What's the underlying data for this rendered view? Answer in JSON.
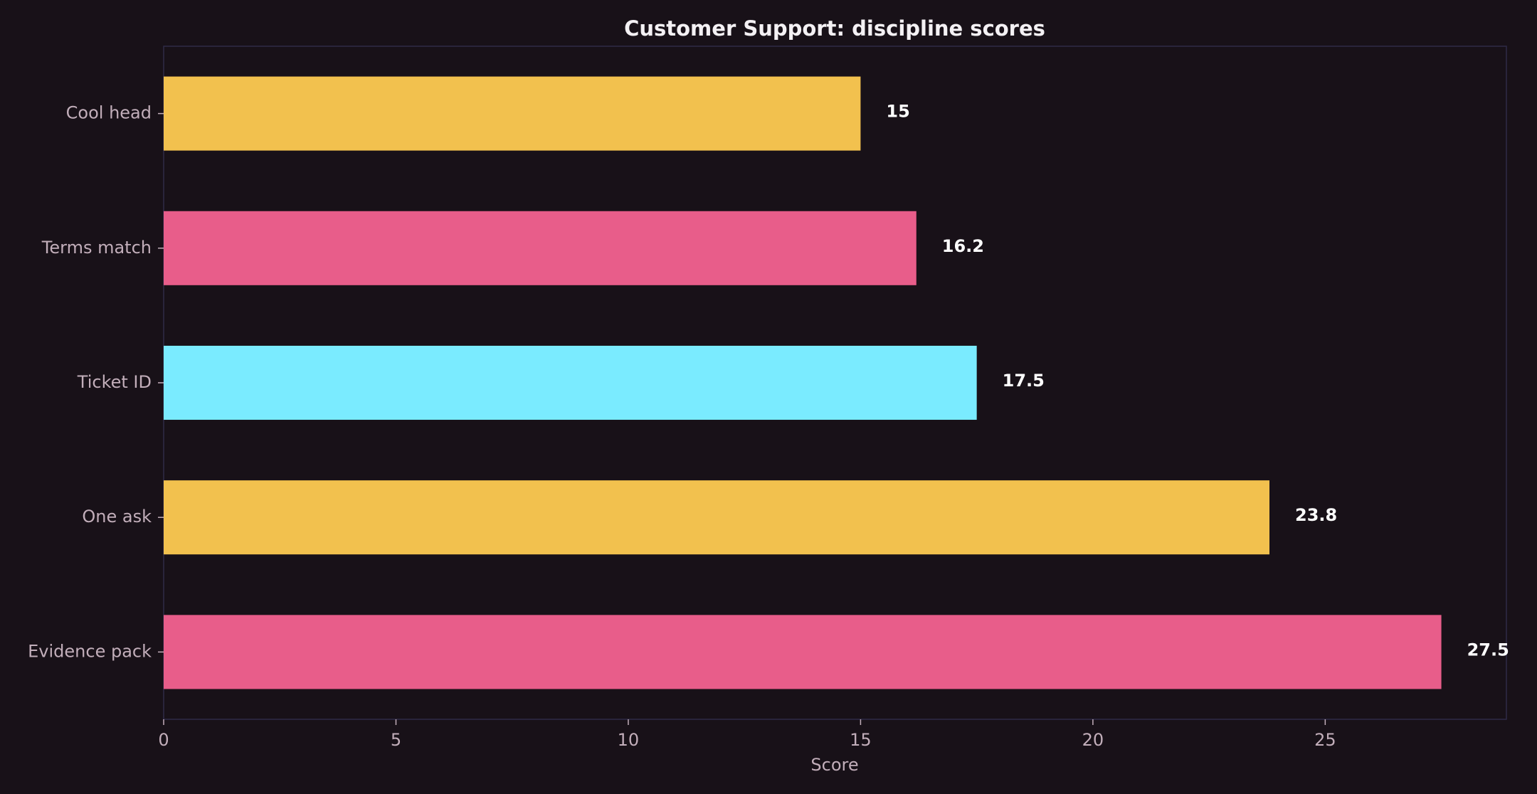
{
  "chart_data": {
    "type": "bar",
    "orientation": "horizontal",
    "title": "Customer Support: discipline scores",
    "xlabel": "Score",
    "ylabel": "",
    "categories": [
      "Cool head",
      "Terms match",
      "Ticket ID",
      "One ask",
      "Evidence pack"
    ],
    "values": [
      15,
      16.2,
      17.5,
      23.8,
      27.5
    ],
    "value_labels": [
      "15",
      "16.2",
      "17.5",
      "23.8",
      "27.5"
    ],
    "bar_colors": [
      "#f2c14e",
      "#e85d8a",
      "#7aebff",
      "#f2c14e",
      "#e85d8a"
    ],
    "xlim": [
      0,
      28.9
    ],
    "xticks": [
      0,
      5,
      10,
      15,
      20,
      25
    ],
    "xtick_labels": [
      "0",
      "5",
      "10",
      "15",
      "20",
      "25"
    ],
    "grid": false,
    "legend": "none"
  },
  "colors": {
    "background": "#181118",
    "frame": "#2f2a47",
    "tick_text": "#c2aeba",
    "title_text": "#f4f1f4",
    "label_text": "#ffffff"
  }
}
